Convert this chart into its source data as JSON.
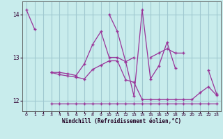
{
  "xlabel": "Windchill (Refroidissement éolien,°C)",
  "background_color": "#c8ecec",
  "grid_color": "#a0c8d0",
  "line_color": "#993399",
  "xlim": [
    -0.5,
    23.5
  ],
  "ylim": [
    11.75,
    14.3
  ],
  "yticks": [
    12,
    13,
    14
  ],
  "xticks": [
    0,
    1,
    2,
    3,
    4,
    5,
    6,
    7,
    8,
    9,
    10,
    11,
    12,
    13,
    14,
    15,
    16,
    17,
    18,
    19,
    20,
    21,
    22,
    23
  ],
  "series": [
    [
      14.1,
      13.65,
      null,
      null,
      null,
      null,
      null,
      null,
      null,
      null,
      14.0,
      13.6,
      12.9,
      12.1,
      14.1,
      12.5,
      12.8,
      13.35,
      12.75,
      null,
      null,
      null,
      12.7,
      12.15
    ],
    [
      null,
      null,
      null,
      12.65,
      12.65,
      12.62,
      12.58,
      12.85,
      13.3,
      13.6,
      13.0,
      13.0,
      12.9,
      13.0,
      null,
      13.0,
      13.1,
      13.2,
      13.1,
      13.1,
      null,
      null,
      null,
      null
    ],
    [
      null,
      null,
      null,
      12.65,
      12.6,
      12.57,
      12.54,
      12.5,
      12.72,
      12.82,
      12.92,
      12.92,
      12.48,
      12.42,
      12.02,
      12.02,
      12.02,
      12.02,
      12.02,
      12.02,
      12.02,
      12.18,
      12.32,
      12.12
    ],
    [
      null,
      null,
      null,
      11.93,
      11.93,
      11.93,
      11.93,
      11.93,
      11.93,
      11.93,
      11.93,
      11.93,
      11.93,
      11.93,
      11.93,
      11.93,
      11.93,
      11.93,
      11.93,
      11.93,
      11.93,
      11.93,
      11.93,
      11.93
    ]
  ]
}
